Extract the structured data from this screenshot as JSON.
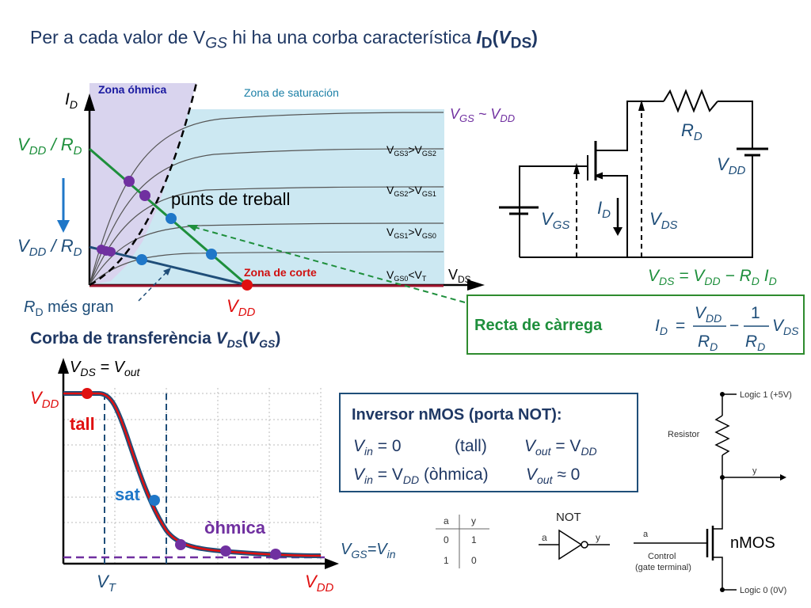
{
  "title": {
    "prefix": "Per a cada valor de V",
    "sub1": "GS",
    "mid": " hi ha una corba característica ",
    "bold_i": "I",
    "sub2": "D",
    "paren_open": "(",
    "bold_v": "V",
    "sub3": "DS",
    "paren_close": ")"
  },
  "output_chart": {
    "y_axis": "I",
    "y_axis_sub": "D",
    "x_axis": "V",
    "x_axis_sub": "DS",
    "zone_ohmic": "Zona óhmica",
    "zone_saturation": "Zona de saturación",
    "zone_cutoff": "Zona de corte",
    "curve_labels": [
      {
        "a": "V",
        "asub": "GS3",
        "op": ">",
        "b": "V",
        "bsub": "GS2"
      },
      {
        "a": "V",
        "asub": "GS2",
        "op": ">",
        "b": "V",
        "bsub": "GS1"
      },
      {
        "a": "V",
        "asub": "GS1",
        "op": ">",
        "b": "V",
        "bsub": "GS0"
      },
      {
        "a": "V",
        "asub": "GS0",
        "op": "<",
        "b": "V",
        "bsub": "T"
      }
    ],
    "top_curve_label": {
      "a": "V",
      "asub": "GS",
      "op": " ~ V",
      "bsub": "DD"
    },
    "yl_1": {
      "a": "V",
      "asub": "DD",
      "mid": " / R",
      "bsub": "D"
    },
    "yl_2": {
      "a": "V",
      "asub": "DD",
      "mid": " / R",
      "bsub": "D"
    },
    "punts": "punts de treball",
    "rd_mes_gran": {
      "a": "R",
      "asub": "D",
      "rest": " més gran"
    },
    "vdd_x": {
      "a": "V",
      "asub": "DD"
    }
  },
  "circuit": {
    "rd": {
      "a": "R",
      "sub": "D"
    },
    "vdd": {
      "a": "V",
      "sub": "DD"
    },
    "vgs": {
      "a": "V",
      "sub": "GS"
    },
    "id": {
      "a": "I",
      "sub": "D"
    },
    "vds": {
      "a": "V",
      "sub": "DS"
    },
    "equation": {
      "a": "V",
      "asub": "DS",
      "eq": " = V",
      "bsub": "DD",
      "minus": " − R",
      "csub": "D",
      "d": " I",
      "dsub": "D"
    }
  },
  "recta": {
    "label": "Recta de càrrega",
    "lhs": "I",
    "lhs_sub": "D",
    "eq": "=",
    "num1": "V",
    "num1_sub": "DD",
    "den1": "R",
    "den1_sub": "D",
    "minus": "−",
    "num2": "1",
    "den2": "R",
    "den2_sub": "D",
    "tail": "V",
    "tail_sub": "DS"
  },
  "transfer": {
    "title": {
      "pre": "Corba de transferència ",
      "a": "V",
      "asub": "DS",
      "open": "(",
      "b": "V",
      "bsub": "GS",
      "close": ")"
    },
    "y_axis": {
      "a": "V",
      "asub": "DS",
      "eq": " = ",
      "b": "V",
      "bsub": "out"
    },
    "x_axis": {
      "a": "V",
      "asub": "GS",
      "eq": "=",
      "b": "V",
      "bsub": "in"
    },
    "vdd_y": {
      "a": "V",
      "asub": "DD"
    },
    "vdd_x": {
      "a": "V",
      "asub": "DD"
    },
    "vt": {
      "a": "V",
      "asub": "T"
    },
    "tall": "tall",
    "sat": "sat",
    "ohmica": "òhmica"
  },
  "inverter": {
    "title": "Inversor nMOS (porta NOT):",
    "row1": {
      "a": "V",
      "asub": "in",
      "eq": " = 0",
      "state": "(tall)",
      "b": "V",
      "bsub": "out",
      "eq2": " = V",
      "csub": "DD"
    },
    "row2": {
      "a": "V",
      "asub": "in",
      "eq": " = V",
      "bsub": "DD",
      "state": " (òhmica)",
      "c": "V",
      "csub": "out",
      "eq2": " ≈ 0"
    }
  },
  "truth_table": {
    "headers": [
      "a",
      "y"
    ],
    "rows": [
      [
        "0",
        "1"
      ],
      [
        "1",
        "0"
      ]
    ]
  },
  "not_gate": {
    "label": "NOT",
    "in": "a",
    "out": "y"
  },
  "schematic": {
    "logic1": "Logic 1 (+5V)",
    "resistor": "Resistor",
    "y": "y",
    "a": "a",
    "control1": "Control",
    "control2": "(gate terminal)",
    "nmos": "nMOS",
    "logic0": "Logic 0 (0V)"
  },
  "colors": {
    "ohmic_zone": "#d9d4ee",
    "sat_zone": "#cce8f2",
    "green": "#1e8f3c",
    "blue_line": "#1f4e79",
    "red": "#e01010",
    "purple": "#7030a0",
    "dot_blue": "#1f77c8"
  }
}
